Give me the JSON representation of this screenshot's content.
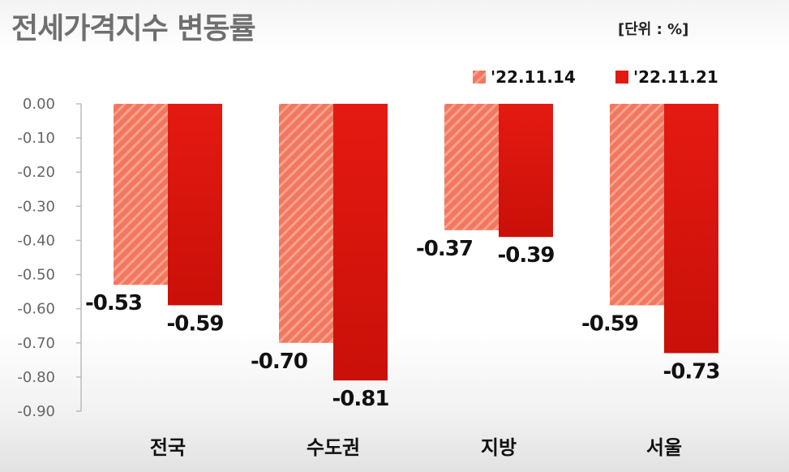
{
  "header": {
    "title": "전세가격지수 변동률",
    "unit": "[단위 : %]"
  },
  "colors": {
    "series1_base": "#f3775f",
    "series1_stripe": "#f9a28e",
    "series2": "#e41a12",
    "series2_dark": "#c91009",
    "axis": "#bbbbbb"
  },
  "chart_data": {
    "type": "bar",
    "categories": [
      "전국",
      "수도권",
      "지방",
      "서울"
    ],
    "series": [
      {
        "name": "'22.11.14",
        "values": [
          -0.53,
          -0.7,
          -0.37,
          -0.59
        ]
      },
      {
        "name": "'22.11.21",
        "values": [
          -0.59,
          -0.81,
          -0.39,
          -0.73
        ]
      }
    ],
    "data_labels": [
      [
        "-0.53",
        "-0.70",
        "-0.37",
        "-0.59"
      ],
      [
        "-0.59",
        "-0.81",
        "-0.39",
        "-0.73"
      ]
    ],
    "ylim": [
      -0.9,
      0.0
    ],
    "yticks": [
      0.0,
      -0.1,
      -0.2,
      -0.3,
      -0.4,
      -0.5,
      -0.6,
      -0.7,
      -0.8,
      -0.9
    ],
    "ytick_labels": [
      "0.00",
      "-0.10",
      "-0.20",
      "-0.30",
      "-0.40",
      "-0.50",
      "-0.60",
      "-0.70",
      "-0.80",
      "-0.90"
    ],
    "grid": false,
    "legend_position": "top-right"
  }
}
